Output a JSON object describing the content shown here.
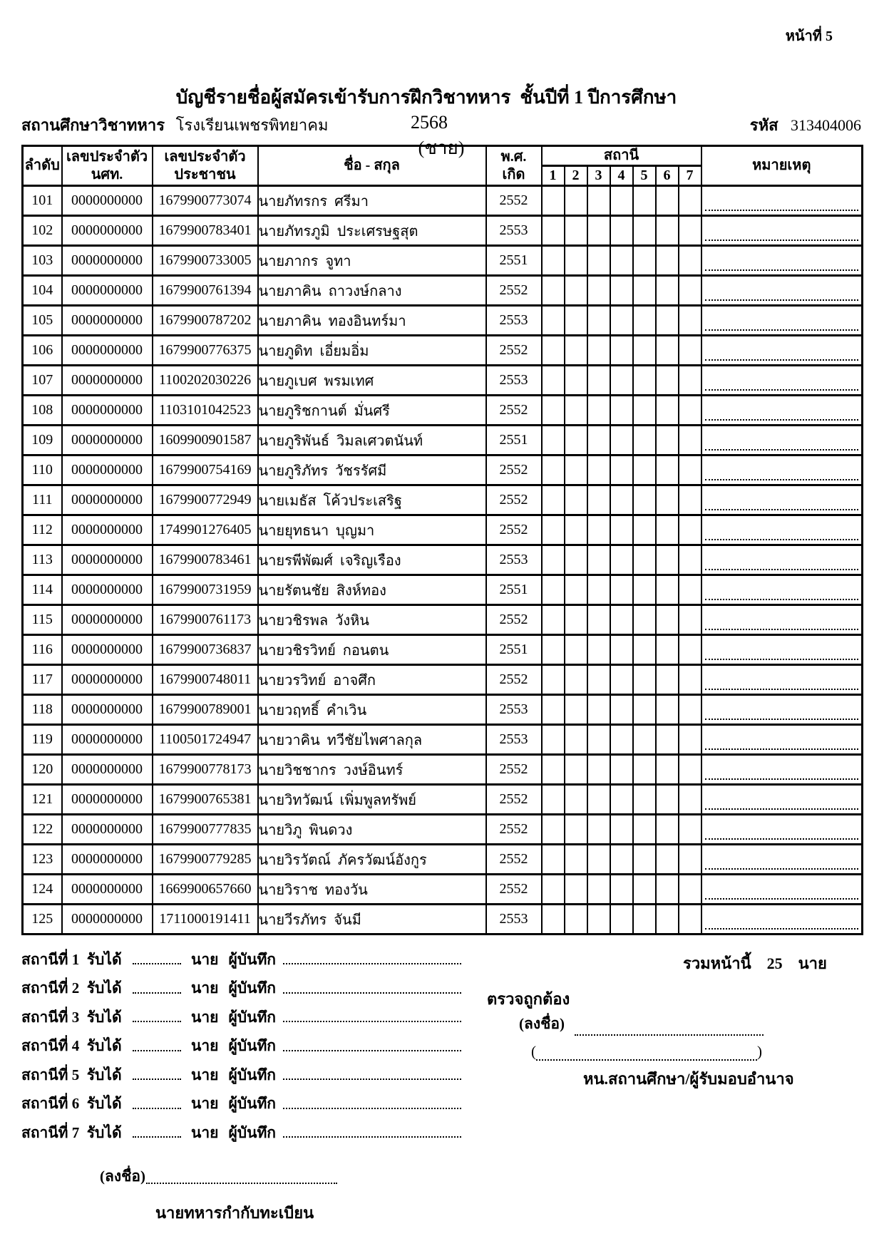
{
  "page": {
    "page_label": "หน้าที่ 5",
    "title_main": "บัญชีรายชื่อผู้สมัครเข้ารับการฝึกวิชาทหาร  ชั้นปีที่ 1 ปีการศึกษา",
    "title_year": "2568",
    "title_suffix": "(ชาย)",
    "school_label": "สถานศึกษาวิชาทหาร",
    "school_name": "โรงเรียนเพชรพิทยาคม",
    "code_label": "รหัส",
    "code_value": "313404006"
  },
  "table": {
    "headers": {
      "order": "ลำดับ",
      "student_id_line1": "เลขประจำตัว",
      "student_id_line2": "นศท.",
      "citizen_id_line1": "เลขประจำตัว",
      "citizen_id_line2": "ประชาชน",
      "name": "ชื่อ - สกุล",
      "birth_line1": "พ.ศ.",
      "birth_line2": "เกิด",
      "station": "สถานี",
      "station_numbers": [
        "1",
        "2",
        "3",
        "4",
        "5",
        "6",
        "7"
      ],
      "remarks": "หมายเหตุ"
    },
    "rows": [
      {
        "no": "101",
        "student_id": "0000000000",
        "citizen_id": "1679900773074",
        "name": "นายภัทรกร  ศรีมา",
        "birth_year": "2552"
      },
      {
        "no": "102",
        "student_id": "0000000000",
        "citizen_id": "1679900783401",
        "name": "นายภัทรภูมิ  ประเศรษฐสุต",
        "birth_year": "2553"
      },
      {
        "no": "103",
        "student_id": "0000000000",
        "citizen_id": "1679900733005",
        "name": "นายภากร  จูทา",
        "birth_year": "2551"
      },
      {
        "no": "104",
        "student_id": "0000000000",
        "citizen_id": "1679900761394",
        "name": "นายภาคิน  ถาวงษ์กลาง",
        "birth_year": "2552"
      },
      {
        "no": "105",
        "student_id": "0000000000",
        "citizen_id": "1679900787202",
        "name": "นายภาคิน  ทองอินทร์มา",
        "birth_year": "2553"
      },
      {
        "no": "106",
        "student_id": "0000000000",
        "citizen_id": "1679900776375",
        "name": "นายภูดิท  เอี่ยมอิ่ม",
        "birth_year": "2552"
      },
      {
        "no": "107",
        "student_id": "0000000000",
        "citizen_id": "1100202030226",
        "name": "นายภูเบศ  พรมเทศ",
        "birth_year": "2553"
      },
      {
        "no": "108",
        "student_id": "0000000000",
        "citizen_id": "1103101042523",
        "name": "นายภูริชกานต์  มั่นศรี",
        "birth_year": "2552"
      },
      {
        "no": "109",
        "student_id": "0000000000",
        "citizen_id": "1609900901587",
        "name": "นายภูริพันธ์  วิมลเศวตนันท์",
        "birth_year": "2551"
      },
      {
        "no": "110",
        "student_id": "0000000000",
        "citizen_id": "1679900754169",
        "name": "นายภูริภัทร  วัชรรัศมี",
        "birth_year": "2552"
      },
      {
        "no": "111",
        "student_id": "0000000000",
        "citizen_id": "1679900772949",
        "name": "นายเมธัส  โค้วประเสริฐ",
        "birth_year": "2552"
      },
      {
        "no": "112",
        "student_id": "0000000000",
        "citizen_id": "1749901276405",
        "name": "นายยุทธนา  บุญมา",
        "birth_year": "2552"
      },
      {
        "no": "113",
        "student_id": "0000000000",
        "citizen_id": "1679900783461",
        "name": "นายรพีพัฒศ์  เจริญเรือง",
        "birth_year": "2553"
      },
      {
        "no": "114",
        "student_id": "0000000000",
        "citizen_id": "1679900731959",
        "name": "นายรัตนชัย  สิงห์ทอง",
        "birth_year": "2551"
      },
      {
        "no": "115",
        "student_id": "0000000000",
        "citizen_id": "1679900761173",
        "name": "นายวชิรพล  วังหิน",
        "birth_year": "2552"
      },
      {
        "no": "116",
        "student_id": "0000000000",
        "citizen_id": "1679900736837",
        "name": "นายวชิรวิทย์  กอนตน",
        "birth_year": "2551"
      },
      {
        "no": "117",
        "student_id": "0000000000",
        "citizen_id": "1679900748011",
        "name": "นายวรวิทย์  อาจศึก",
        "birth_year": "2552"
      },
      {
        "no": "118",
        "student_id": "0000000000",
        "citizen_id": "1679900789001",
        "name": "นายวฤทธิ์  คำเวิน",
        "birth_year": "2553"
      },
      {
        "no": "119",
        "student_id": "0000000000",
        "citizen_id": "1100501724947",
        "name": "นายวาคิน  ทวีชัยไพศาลกุล",
        "birth_year": "2553"
      },
      {
        "no": "120",
        "student_id": "0000000000",
        "citizen_id": "1679900778173",
        "name": "นายวิชชากร  วงษ์อินทร์",
        "birth_year": "2552"
      },
      {
        "no": "121",
        "student_id": "0000000000",
        "citizen_id": "1679900765381",
        "name": "นายวิทวัฒน์  เพิ่มพูลทรัพย์",
        "birth_year": "2552"
      },
      {
        "no": "122",
        "student_id": "0000000000",
        "citizen_id": "1679900777835",
        "name": "นายวิภู  พินดวง",
        "birth_year": "2552"
      },
      {
        "no": "123",
        "student_id": "0000000000",
        "citizen_id": "1679900779285",
        "name": "นายวิรวัตณ์  ภัครวัฒน์อังกูร",
        "birth_year": "2552"
      },
      {
        "no": "124",
        "student_id": "0000000000",
        "citizen_id": "1669900657660",
        "name": "นายวิราช  ทองวัน",
        "birth_year": "2552"
      },
      {
        "no": "125",
        "student_id": "0000000000",
        "citizen_id": "1711000191411",
        "name": "นายวีรภัทร  จันมี",
        "birth_year": "2553"
      }
    ]
  },
  "footer": {
    "stations": [
      {
        "label": "สถานีที่ 1  รับได้"
      },
      {
        "label": "สถานีที่ 2  รับได้"
      },
      {
        "label": "สถานีที่ 3  รับได้"
      },
      {
        "label": "สถานีที่ 4  รับได้"
      },
      {
        "label": "สถานีที่ 5  รับได้"
      },
      {
        "label": "สถานีที่ 6  รับได้"
      },
      {
        "label": "สถานีที่ 7  รับได้"
      }
    ],
    "unit_label": "นาย",
    "recorder_label": "ผู้บันทึก",
    "total_label": "รวมหน้านี้",
    "total_value": "25",
    "total_unit": "นาย",
    "verified_label": "ตรวจถูกต้อง",
    "sign_label": "(ลงชื่อ)",
    "paren_open": "(",
    "paren_close": ")",
    "signer_title": "หน.สถานศึกษา/ผู้รับมอบอำนาจ",
    "bottom_sign_label": "(ลงชื่อ)",
    "bottom_signer_title": "นายทหารกำกับทะเบียน"
  }
}
